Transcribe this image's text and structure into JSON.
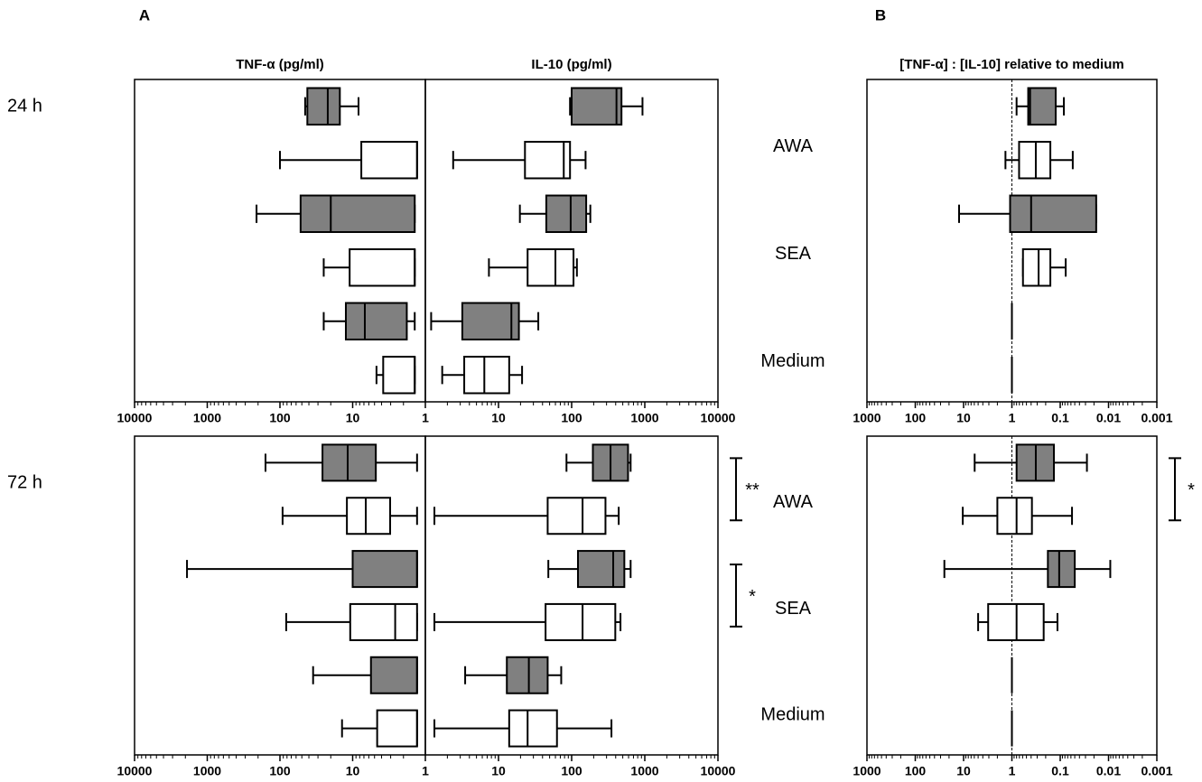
{
  "panels": [
    "A",
    "B"
  ],
  "rows": [
    "24 h",
    "72 h"
  ],
  "groups": [
    "AWA",
    "SEA",
    "Medium"
  ],
  "chart_data": [
    {
      "type": "box",
      "title": "TNF-α (pg/ml)",
      "log": true,
      "xlim": [
        10000,
        1
      ],
      "xticks": [
        10000,
        1000,
        100,
        10,
        1
      ],
      "boxes": [
        {
          "color": "#808080",
          "min": 8.3,
          "q1": 15,
          "median": 22,
          "q3": 42,
          "max": 45
        },
        {
          "color": "#ffffff",
          "min": 1.3,
          "q1": 1.3,
          "median": 1.3,
          "q3": 7.6,
          "max": 100
        },
        {
          "color": "#808080",
          "min": 1.4,
          "q1": 1.4,
          "median": 20,
          "q3": 52,
          "max": 210
        },
        {
          "color": "#ffffff",
          "min": 1.4,
          "q1": 1.4,
          "median": 1.4,
          "q3": 11,
          "max": 25
        },
        {
          "color": "#808080",
          "min": 1.4,
          "q1": 1.8,
          "median": 6.8,
          "q3": 12.4,
          "max": 25
        },
        {
          "color": "#ffffff",
          "min": 1.4,
          "q1": 1.4,
          "median": 1.4,
          "q3": 3.8,
          "max": 4.7
        }
      ]
    },
    {
      "type": "box",
      "title": "IL-10 (pg/ml)",
      "log": true,
      "xlim": [
        1,
        10000
      ],
      "xticks": [
        10,
        100,
        1000,
        10000
      ],
      "boxes": [
        {
          "color": "#808080",
          "min": 95,
          "q1": 100,
          "median": 410,
          "q3": 480,
          "max": 930
        },
        {
          "color": "#ffffff",
          "min": 2.4,
          "q1": 23,
          "median": 78,
          "q3": 95,
          "max": 155
        },
        {
          "color": "#808080",
          "min": 19.6,
          "q1": 45,
          "median": 97,
          "q3": 158,
          "max": 180
        },
        {
          "color": "#ffffff",
          "min": 7.4,
          "q1": 25,
          "median": 60,
          "q3": 106,
          "max": 118
        },
        {
          "color": "#808080",
          "min": 1.2,
          "q1": 3.2,
          "median": 15,
          "q3": 19,
          "max": 35
        },
        {
          "color": "#ffffff",
          "min": 1.7,
          "q1": 3.4,
          "median": 6.4,
          "q3": 14,
          "max": 21
        }
      ]
    },
    {
      "type": "box",
      "title": "[TNF-α] : [IL-10] relative to medium",
      "log": true,
      "xlim": [
        1000,
        0.001
      ],
      "xticks": [
        1000,
        100,
        10,
        1,
        0.1,
        0.01,
        0.001
      ],
      "refline": 1,
      "boxes": [
        {
          "color": "#808080",
          "min": 0.084,
          "q1": 0.124,
          "median": 0.42,
          "q3": 0.46,
          "max": 0.8
        },
        {
          "color": "#ffffff",
          "min": 0.055,
          "q1": 0.16,
          "median": 0.32,
          "q3": 0.71,
          "max": 1.36
        },
        {
          "color": "#808080",
          "min": 0.018,
          "q1": 0.018,
          "median": 0.4,
          "q3": 1.09,
          "max": 12.4
        },
        {
          "color": "#ffffff",
          "min": 0.077,
          "q1": 0.16,
          "median": 0.28,
          "q3": 0.59,
          "max": 0.59
        },
        {
          "color": "#808080",
          "min": 1,
          "q1": 1,
          "median": 1,
          "q3": 1,
          "max": 1
        },
        {
          "color": "#ffffff",
          "min": 1,
          "q1": 1,
          "median": 1,
          "q3": 1,
          "max": 1
        }
      ]
    },
    {
      "type": "box",
      "log": true,
      "xlim": [
        10000,
        1
      ],
      "xticks": [
        10000,
        1000,
        100,
        10,
        1
      ],
      "boxes": [
        {
          "color": "#808080",
          "min": 1.3,
          "q1": 4.8,
          "median": 11.7,
          "q3": 26,
          "max": 158
        },
        {
          "color": "#ffffff",
          "min": 1.3,
          "q1": 3.05,
          "median": 6.6,
          "q3": 12,
          "max": 92
        },
        {
          "color": "#808080",
          "min": 1.3,
          "q1": 1.3,
          "median": 1.3,
          "q3": 10,
          "max": 1900
        },
        {
          "color": "#ffffff",
          "min": 1.3,
          "q1": 1.3,
          "median": 2.6,
          "q3": 10.8,
          "max": 82
        },
        {
          "color": "#808080",
          "min": 1.3,
          "q1": 1.3,
          "median": 1.3,
          "q3": 5.6,
          "max": 35
        },
        {
          "color": "#ffffff",
          "min": 1.3,
          "q1": 1.3,
          "median": 1.3,
          "q3": 4.6,
          "max": 14
        }
      ]
    },
    {
      "type": "box",
      "log": true,
      "xlim": [
        1,
        10000
      ],
      "xticks": [
        10,
        100,
        1000,
        10000
      ],
      "annotations": [
        "**",
        "*"
      ],
      "boxes": [
        {
          "color": "#808080",
          "min": 85,
          "q1": 195,
          "median": 340,
          "q3": 590,
          "max": 640
        },
        {
          "color": "#ffffff",
          "min": 1.33,
          "q1": 47,
          "median": 141,
          "q3": 290,
          "max": 440
        },
        {
          "color": "#808080",
          "min": 48,
          "q1": 122,
          "median": 370,
          "q3": 525,
          "max": 640
        },
        {
          "color": "#ffffff",
          "min": 1.33,
          "q1": 44,
          "median": 141,
          "q3": 395,
          "max": 465
        },
        {
          "color": "#808080",
          "min": 3.5,
          "q1": 13,
          "median": 26,
          "q3": 47,
          "max": 72
        },
        {
          "color": "#ffffff",
          "min": 1.33,
          "q1": 14,
          "median": 25,
          "q3": 63,
          "max": 350
        }
      ]
    },
    {
      "type": "box",
      "log": true,
      "xlim": [
        1000,
        0.001
      ],
      "xticks": [
        1000,
        100,
        10,
        1,
        0.1,
        0.01,
        0.001
      ],
      "refline": 1,
      "annotations": [
        "*"
      ],
      "boxes": [
        {
          "color": "#808080",
          "min": 0.028,
          "q1": 0.135,
          "median": 0.32,
          "q3": 0.8,
          "max": 5.9
        },
        {
          "color": "#ffffff",
          "min": 0.057,
          "q1": 0.385,
          "median": 0.8,
          "q3": 2,
          "max": 10.4
        },
        {
          "color": "#808080",
          "min": 0.0092,
          "q1": 0.05,
          "median": 0.105,
          "q3": 0.18,
          "max": 25
        },
        {
          "color": "#ffffff",
          "min": 0.114,
          "q1": 0.22,
          "median": 0.8,
          "q3": 3.1,
          "max": 5
        },
        {
          "color": "#808080",
          "min": 1,
          "q1": 1,
          "median": 1,
          "q3": 1,
          "max": 1
        },
        {
          "color": "#ffffff",
          "min": 1,
          "q1": 1,
          "median": 1,
          "q3": 1,
          "max": 1
        }
      ]
    }
  ]
}
